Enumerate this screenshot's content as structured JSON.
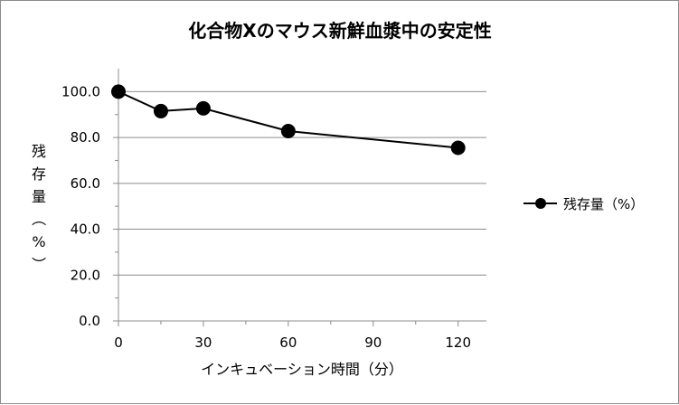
{
  "chart_data": {
    "type": "line",
    "title": "化合物Xのマウス新鮮血漿中の安定性",
    "xlabel": "インキュベーション時間（分）",
    "ylabel": "残存量（%）",
    "x_ticks": [
      "0",
      "30",
      "60",
      "90",
      "120"
    ],
    "y_ticks": [
      "0.0",
      "20.0",
      "40.0",
      "60.0",
      "80.0",
      "100.0"
    ],
    "xlim": [
      0,
      130
    ],
    "ylim": [
      0,
      110
    ],
    "grid": true,
    "legend_position": "right",
    "colors": {
      "series": "#000000",
      "grid": "#8c8c8c",
      "axis": "#8c8c8c"
    },
    "series": [
      {
        "name": "残存量（%）",
        "x": [
          0,
          15,
          30,
          60,
          120
        ],
        "values": [
          100.0,
          91.5,
          92.7,
          82.8,
          75.5
        ]
      }
    ]
  }
}
